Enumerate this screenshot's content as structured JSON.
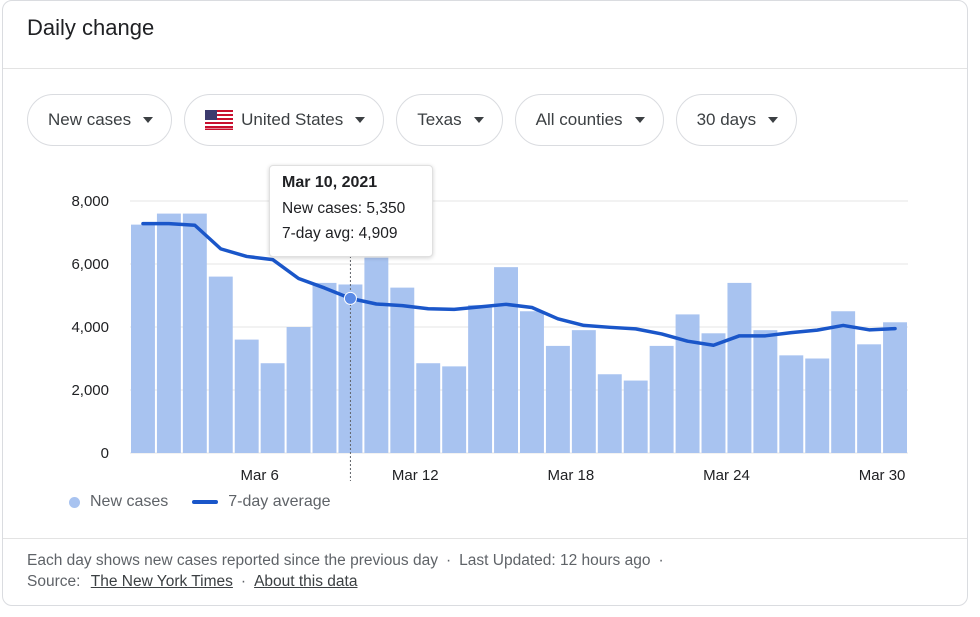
{
  "header": {
    "title": "Daily change"
  },
  "filters": [
    {
      "label": "New cases",
      "icon": ""
    },
    {
      "label": "United States",
      "icon": "us-flag-icon"
    },
    {
      "label": "Texas",
      "icon": ""
    },
    {
      "label": "All counties",
      "icon": ""
    },
    {
      "label": "30 days",
      "icon": ""
    }
  ],
  "tooltip": {
    "date": "Mar 10, 2021",
    "new_cases": "New cases: 5,350",
    "avg": "7-day avg: 4,909"
  },
  "legend": {
    "bars": "New cases",
    "line": "7-day average"
  },
  "footer": {
    "note": "Each day shows new cases reported since the previous day",
    "updated": "Last Updated: 12 hours ago",
    "source_label": "Source:",
    "source_link": "The New York Times",
    "about_link": "About this data"
  },
  "colors": {
    "bar": "#a8c3f0",
    "line": "#1a56c9",
    "grid": "#e6e6e6"
  },
  "chart_data": {
    "type": "bar",
    "ylim": [
      0,
      8000
    ],
    "yticks": [
      "8,000",
      "6,000",
      "4,000",
      "2,000",
      "0"
    ],
    "ytick_values": [
      8000,
      6000,
      4000,
      2000,
      0
    ],
    "xtick_labels": [
      {
        "label": "Mar 6",
        "index": 4.5
      },
      {
        "label": "Mar 12",
        "index": 10.5
      },
      {
        "label": "Mar 18",
        "index": 16.5
      },
      {
        "label": "Mar 24",
        "index": 22.5
      },
      {
        "label": "Mar 30",
        "index": 28.5
      }
    ],
    "series": [
      {
        "name": "New cases",
        "type": "bar",
        "values": [
          7250,
          7600,
          7600,
          5600,
          3600,
          2850,
          4000,
          5400,
          5350,
          6200,
          5250,
          2850,
          2750,
          4700,
          5900,
          4500,
          3400,
          3900,
          2500,
          2300,
          3400,
          4400,
          3800,
          5400,
          3900,
          3100,
          3000,
          4500,
          3450,
          4150
        ]
      },
      {
        "name": "7-day average",
        "type": "line",
        "values": [
          7280,
          7280,
          7230,
          6480,
          6240,
          6140,
          5540,
          5240,
          4909,
          4730,
          4680,
          4580,
          4560,
          4640,
          4720,
          4620,
          4260,
          4050,
          3990,
          3940,
          3780,
          3550,
          3420,
          3720,
          3720,
          3820,
          3900,
          4050,
          3910,
          3950
        ]
      }
    ],
    "highlight_index": 8
  }
}
